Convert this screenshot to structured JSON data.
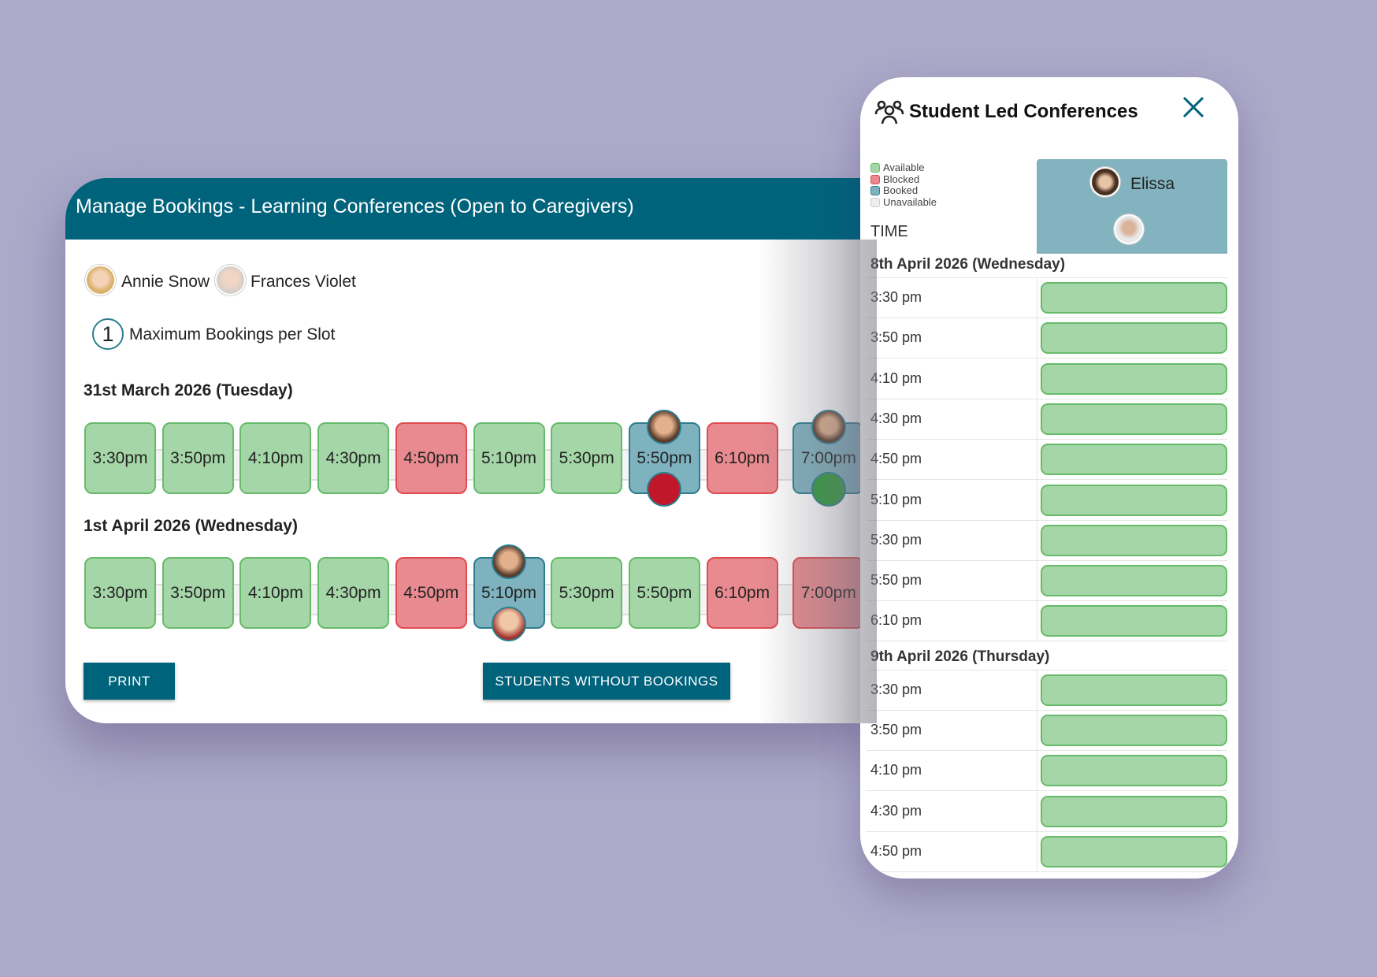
{
  "colors": {
    "background": "#aca9c9",
    "header": "#00637c",
    "available": "#a5d6a7",
    "blocked": "#e88a8f",
    "booked": "#7fb2bf"
  },
  "manage": {
    "title": "Manage Bookings - Learning Conferences (Open to Caregivers)",
    "people": [
      "Annie Snow",
      "Frances Violet"
    ],
    "max_bookings": "1",
    "max_bookings_label": "Maximum Bookings per Slot",
    "days": [
      {
        "date": "31st March 2026 (Tuesday)",
        "slots": [
          {
            "time": "3:30pm",
            "status": "available"
          },
          {
            "time": "3:50pm",
            "status": "available"
          },
          {
            "time": "4:10pm",
            "status": "available"
          },
          {
            "time": "4:30pm",
            "status": "available"
          },
          {
            "time": "4:50pm",
            "status": "blocked"
          },
          {
            "time": "5:10pm",
            "status": "available"
          },
          {
            "time": "5:30pm",
            "status": "available"
          },
          {
            "time": "5:50pm",
            "status": "booked"
          },
          {
            "time": "6:10pm",
            "status": "blocked"
          },
          {
            "time": "7:00pm",
            "status": "booked"
          }
        ]
      },
      {
        "date": "1st April 2026 (Wednesday)",
        "slots": [
          {
            "time": "3:30pm",
            "status": "available"
          },
          {
            "time": "3:50pm",
            "status": "available"
          },
          {
            "time": "4:10pm",
            "status": "available"
          },
          {
            "time": "4:30pm",
            "status": "available"
          },
          {
            "time": "4:50pm",
            "status": "blocked"
          },
          {
            "time": "5:10pm",
            "status": "booked"
          },
          {
            "time": "5:30pm",
            "status": "available"
          },
          {
            "time": "5:50pm",
            "status": "available"
          },
          {
            "time": "6:10pm",
            "status": "blocked"
          },
          {
            "time": "7:00pm",
            "status": "blocked"
          }
        ]
      }
    ],
    "print_label": "PRINT",
    "students_without_label": "STUDENTS WITHOUT BOOKINGS"
  },
  "panel": {
    "title": "Student Led Conferences",
    "icon": "group-icon",
    "legend": [
      "Available",
      "Blocked",
      "Booked",
      "Unavailable"
    ],
    "time_header": "TIME",
    "teacher": "Elissa",
    "days": [
      {
        "date": "8th April 2026 (Wednesday)",
        "times": [
          "3:30 pm",
          "3:50 pm",
          "4:10 pm",
          "4:30 pm",
          "4:50 pm",
          "5:10 pm",
          "5:30 pm",
          "5:50 pm",
          "6:10 pm"
        ]
      },
      {
        "date": "9th April 2026 (Thursday)",
        "times": [
          "3:30 pm",
          "3:50 pm",
          "4:10 pm",
          "4:30 pm",
          "4:50 pm"
        ]
      }
    ]
  }
}
